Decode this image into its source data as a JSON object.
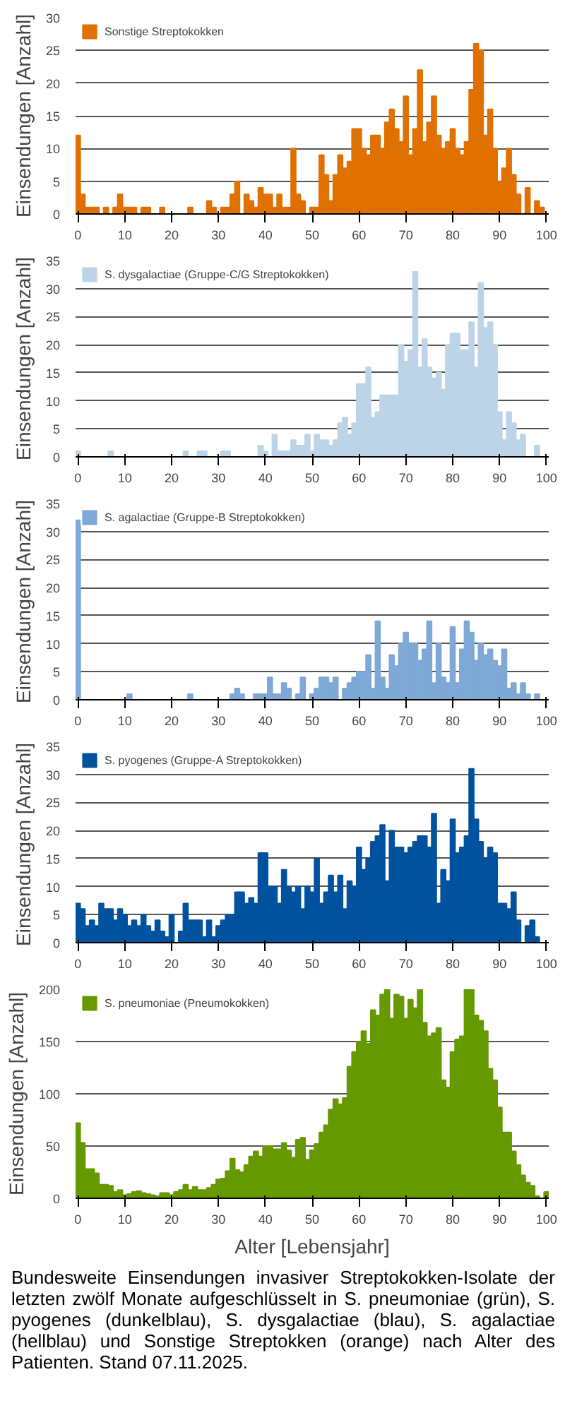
{
  "chart_data": [
    {
      "type": "bar",
      "ylabel": "Einsendungen [Anzahl]",
      "xlim": [
        -0.5,
        100.5
      ],
      "xticks": [
        0,
        10,
        20,
        30,
        40,
        50,
        60,
        70,
        80,
        90,
        100
      ],
      "ylim": [
        0,
        30
      ],
      "yticks": [
        0,
        5,
        10,
        15,
        20,
        25,
        30
      ],
      "grid": "y",
      "legend": "top left",
      "x": [
        0,
        1,
        2,
        3,
        4,
        5,
        6,
        7,
        8,
        9,
        10,
        11,
        12,
        13,
        14,
        15,
        16,
        17,
        18,
        19,
        20,
        21,
        22,
        23,
        24,
        25,
        26,
        27,
        28,
        29,
        30,
        31,
        32,
        33,
        34,
        35,
        36,
        37,
        38,
        39,
        40,
        41,
        42,
        43,
        44,
        45,
        46,
        47,
        48,
        49,
        50,
        51,
        52,
        53,
        54,
        55,
        56,
        57,
        58,
        59,
        60,
        61,
        62,
        63,
        64,
        65,
        66,
        67,
        68,
        69,
        70,
        71,
        72,
        73,
        74,
        75,
        76,
        77,
        78,
        79,
        80,
        81,
        82,
        83,
        84,
        85,
        86,
        87,
        88,
        89,
        90,
        91,
        92,
        93,
        94,
        95,
        96,
        97,
        98,
        99,
        100
      ],
      "series": [
        {
          "name": "Sonstige Streptokokken",
          "color": "#e07000",
          "values": [
            12,
            3,
            1,
            1,
            1,
            0,
            1,
            0,
            1,
            3,
            1,
            1,
            1,
            0,
            1,
            1,
            0,
            0,
            1,
            0,
            0,
            0,
            0,
            0,
            1,
            0,
            0,
            0,
            2,
            1,
            0,
            1,
            1,
            3,
            5,
            0,
            3,
            2,
            1,
            4,
            3,
            3,
            1,
            3,
            1,
            1,
            10,
            3,
            2,
            0,
            1,
            1,
            9,
            6,
            2,
            6,
            9,
            7,
            8,
            13,
            13,
            10,
            9,
            12,
            12,
            10,
            14,
            16,
            13,
            11,
            18,
            9,
            13,
            22,
            11,
            14,
            18,
            12,
            10,
            11,
            13,
            10,
            9,
            11,
            19,
            26,
            25,
            12,
            16,
            10,
            5,
            7,
            10,
            6,
            3,
            0,
            4,
            0,
            2,
            1,
            0
          ]
        }
      ]
    },
    {
      "type": "bar",
      "ylabel": "Einsendungen [Anzahl]",
      "xlim": [
        -0.5,
        100.5
      ],
      "xticks": [
        0,
        10,
        20,
        30,
        40,
        50,
        60,
        70,
        80,
        90,
        100
      ],
      "ylim": [
        0,
        35
      ],
      "yticks": [
        0,
        5,
        10,
        15,
        20,
        25,
        30,
        35
      ],
      "grid": "y",
      "legend": "top left",
      "x": [
        0,
        1,
        2,
        3,
        4,
        5,
        6,
        7,
        8,
        9,
        10,
        11,
        12,
        13,
        14,
        15,
        16,
        17,
        18,
        19,
        20,
        21,
        22,
        23,
        24,
        25,
        26,
        27,
        28,
        29,
        30,
        31,
        32,
        33,
        34,
        35,
        36,
        37,
        38,
        39,
        40,
        41,
        42,
        43,
        44,
        45,
        46,
        47,
        48,
        49,
        50,
        51,
        52,
        53,
        54,
        55,
        56,
        57,
        58,
        59,
        60,
        61,
        62,
        63,
        64,
        65,
        66,
        67,
        68,
        69,
        70,
        71,
        72,
        73,
        74,
        75,
        76,
        77,
        78,
        79,
        80,
        81,
        82,
        83,
        84,
        85,
        86,
        87,
        88,
        89,
        90,
        91,
        92,
        93,
        94,
        95,
        96,
        97,
        98,
        99,
        100
      ],
      "series": [
        {
          "name": "S. dysgalactiae (Gruppe-C/G Streptokokken)",
          "color": "#bdd4e8",
          "values": [
            1,
            0,
            0,
            0,
            0,
            0,
            0,
            1,
            0,
            0,
            0,
            0,
            0,
            0,
            0,
            0,
            0,
            0,
            0,
            0,
            0,
            0,
            0,
            1,
            0,
            0,
            1,
            1,
            0,
            0,
            0,
            1,
            1,
            0,
            0,
            0,
            0,
            0,
            0,
            2,
            1,
            0,
            4,
            1,
            1,
            1,
            3,
            2,
            2,
            4,
            1,
            4,
            3,
            3,
            2,
            3,
            6,
            7,
            4,
            6,
            13,
            13,
            16,
            7,
            8,
            11,
            11,
            11,
            11,
            20,
            17,
            19,
            33,
            16,
            21,
            16,
            14,
            15,
            12,
            20,
            22,
            22,
            19,
            19,
            24,
            16,
            31,
            23,
            24,
            20,
            8,
            3,
            8,
            6,
            3,
            4,
            0,
            0,
            2,
            0,
            0
          ]
        }
      ]
    },
    {
      "type": "bar",
      "ylabel": "Einsendungen [Anzahl]",
      "xlim": [
        -0.5,
        100.5
      ],
      "xticks": [
        0,
        10,
        20,
        30,
        40,
        50,
        60,
        70,
        80,
        90,
        100
      ],
      "ylim": [
        0,
        35
      ],
      "yticks": [
        0,
        5,
        10,
        15,
        20,
        25,
        30,
        35
      ],
      "grid": "y",
      "legend": "top left",
      "x": [
        0,
        1,
        2,
        3,
        4,
        5,
        6,
        7,
        8,
        9,
        10,
        11,
        12,
        13,
        14,
        15,
        16,
        17,
        18,
        19,
        20,
        21,
        22,
        23,
        24,
        25,
        26,
        27,
        28,
        29,
        30,
        31,
        32,
        33,
        34,
        35,
        36,
        37,
        38,
        39,
        40,
        41,
        42,
        43,
        44,
        45,
        46,
        47,
        48,
        49,
        50,
        51,
        52,
        53,
        54,
        55,
        56,
        57,
        58,
        59,
        60,
        61,
        62,
        63,
        64,
        65,
        66,
        67,
        68,
        69,
        70,
        71,
        72,
        73,
        74,
        75,
        76,
        77,
        78,
        79,
        80,
        81,
        82,
        83,
        84,
        85,
        86,
        87,
        88,
        89,
        90,
        91,
        92,
        93,
        94,
        95,
        96,
        97,
        98,
        99,
        100
      ],
      "series": [
        {
          "name": "S. agalactiae (Gruppe-B Streptokokken)",
          "color": "#7ea8d6",
          "values": [
            32,
            0,
            0,
            0,
            0,
            0,
            0,
            0,
            0,
            0,
            0,
            1,
            0,
            0,
            0,
            0,
            0,
            0,
            0,
            0,
            0,
            0,
            0,
            0,
            1,
            0,
            0,
            0,
            0,
            0,
            0,
            0,
            0,
            1,
            2,
            1,
            0,
            0,
            1,
            1,
            1,
            4,
            1,
            1,
            3,
            2,
            0,
            1,
            4,
            0,
            1,
            2,
            4,
            4,
            3,
            4,
            0,
            2,
            3,
            4,
            5,
            5,
            8,
            2,
            14,
            4,
            2,
            8,
            6,
            10,
            12,
            10,
            10,
            7,
            9,
            14,
            3,
            10,
            4,
            3,
            13,
            3,
            9,
            14,
            12,
            7,
            10,
            8,
            9,
            7,
            6,
            9,
            2,
            3,
            1,
            3,
            1,
            0,
            1,
            0,
            0
          ]
        }
      ]
    },
    {
      "type": "bar",
      "ylabel": "Einsendungen [Anzahl]",
      "xlim": [
        -0.5,
        100.5
      ],
      "xticks": [
        0,
        10,
        20,
        30,
        40,
        50,
        60,
        70,
        80,
        90,
        100
      ],
      "ylim": [
        0,
        35
      ],
      "yticks": [
        0,
        5,
        10,
        15,
        20,
        25,
        30,
        35
      ],
      "grid": "y",
      "legend": "top left",
      "x": [
        0,
        1,
        2,
        3,
        4,
        5,
        6,
        7,
        8,
        9,
        10,
        11,
        12,
        13,
        14,
        15,
        16,
        17,
        18,
        19,
        20,
        21,
        22,
        23,
        24,
        25,
        26,
        27,
        28,
        29,
        30,
        31,
        32,
        33,
        34,
        35,
        36,
        37,
        38,
        39,
        40,
        41,
        42,
        43,
        44,
        45,
        46,
        47,
        48,
        49,
        50,
        51,
        52,
        53,
        54,
        55,
        56,
        57,
        58,
        59,
        60,
        61,
        62,
        63,
        64,
        65,
        66,
        67,
        68,
        69,
        70,
        71,
        72,
        73,
        74,
        75,
        76,
        77,
        78,
        79,
        80,
        81,
        82,
        83,
        84,
        85,
        86,
        87,
        88,
        89,
        90,
        91,
        92,
        93,
        94,
        95,
        96,
        97,
        98,
        99,
        100
      ],
      "series": [
        {
          "name": "S. pyogenes (Gruppe-A Streptokokken)",
          "color": "#00529f",
          "values": [
            7,
            6,
            3,
            4,
            3,
            7,
            6,
            6,
            4,
            6,
            5,
            3,
            4,
            3,
            5,
            3,
            2,
            4,
            2,
            1,
            5,
            0,
            2,
            7,
            4,
            4,
            4,
            1,
            4,
            1,
            3,
            4,
            5,
            5,
            9,
            9,
            7,
            8,
            7,
            16,
            16,
            10,
            10,
            7,
            13,
            10,
            9,
            10,
            6,
            10,
            9,
            15,
            7,
            9,
            12,
            9,
            12,
            6,
            11,
            10,
            17,
            13,
            15,
            18,
            19,
            21,
            11,
            20,
            17,
            17,
            16,
            17,
            18,
            19,
            19,
            17,
            23,
            7,
            13,
            11,
            22,
            16,
            17,
            19,
            31,
            22,
            18,
            15,
            17,
            16,
            7,
            7,
            6,
            9,
            4,
            0,
            3,
            4,
            1,
            0,
            0
          ]
        }
      ]
    },
    {
      "type": "bar",
      "ylabel": "Einsendungen [Anzahl]",
      "xlabel": "Alter [Lebensjahr]",
      "xlim": [
        -0.5,
        100.5
      ],
      "xticks": [
        0,
        10,
        20,
        30,
        40,
        50,
        60,
        70,
        80,
        90,
        100
      ],
      "ylim": [
        0,
        200
      ],
      "yticks": [
        0,
        50,
        100,
        150,
        200
      ],
      "grid": "y",
      "legend": "top left",
      "annotations": [
        "Bundesweite Einsendungen invasiver Streptokokken-Isolate der letzten zwölf Monate aufgeschlüsselt in S. pneumoniae (grün), S. pyogenes (dunkelblau), S. dysgalactiae (blau), S. agalactiae (hellblau) und Sonstige Streptokken (orange) nach Alter des Patienten. Stand 07.11.2025."
      ],
      "x": [
        0,
        1,
        2,
        3,
        4,
        5,
        6,
        7,
        8,
        9,
        10,
        11,
        12,
        13,
        14,
        15,
        16,
        17,
        18,
        19,
        20,
        21,
        22,
        23,
        24,
        25,
        26,
        27,
        28,
        29,
        30,
        31,
        32,
        33,
        34,
        35,
        36,
        37,
        38,
        39,
        40,
        41,
        42,
        43,
        44,
        45,
        46,
        47,
        48,
        49,
        50,
        51,
        52,
        53,
        54,
        55,
        56,
        57,
        58,
        59,
        60,
        61,
        62,
        63,
        64,
        65,
        66,
        67,
        68,
        69,
        70,
        71,
        72,
        73,
        74,
        75,
        76,
        77,
        78,
        79,
        80,
        81,
        82,
        83,
        84,
        85,
        86,
        87,
        88,
        89,
        90,
        91,
        92,
        93,
        94,
        95,
        96,
        97,
        98,
        99,
        100
      ],
      "series": [
        {
          "name": "S. pneumoniae (Pneumokokken)",
          "color": "#669900",
          "values": [
            72,
            53,
            28,
            28,
            24,
            13,
            13,
            12,
            6,
            8,
            3,
            4,
            6,
            7,
            5,
            4,
            3,
            2,
            5,
            5,
            3,
            6,
            8,
            13,
            8,
            11,
            8,
            8,
            10,
            13,
            18,
            19,
            26,
            38,
            27,
            25,
            32,
            40,
            45,
            40,
            50,
            50,
            47,
            47,
            53,
            46,
            39,
            56,
            58,
            37,
            46,
            52,
            63,
            70,
            85,
            95,
            90,
            96,
            126,
            140,
            150,
            160,
            148,
            180,
            175,
            195,
            200,
            172,
            195,
            193,
            172,
            190,
            182,
            200,
            168,
            155,
            158,
            163,
            113,
            106,
            140,
            152,
            155,
            200,
            200,
            175,
            170,
            160,
            124,
            113,
            87,
            63,
            63,
            45,
            32,
            22,
            15,
            12,
            2,
            0,
            6
          ]
        }
      ]
    }
  ]
}
